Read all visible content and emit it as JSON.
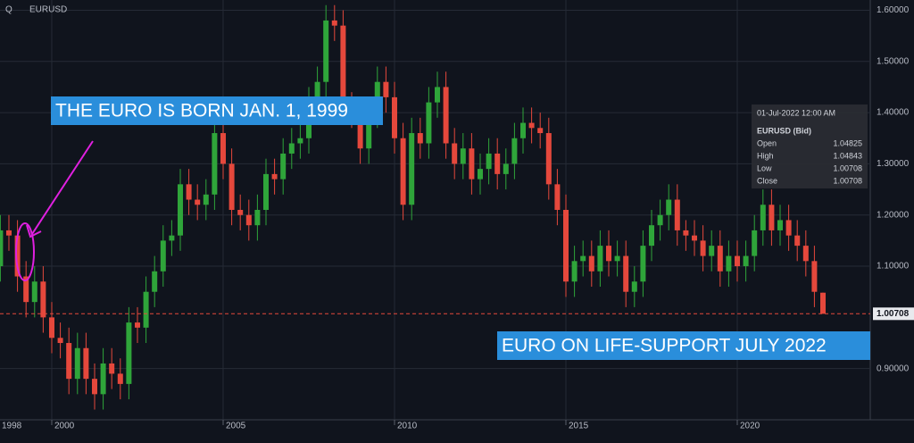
{
  "chart_data": {
    "type": "candlestick",
    "symbol": "EURUSD",
    "menu_label": "Q",
    "x_start_label": "1998",
    "up_color": "#2fa53a",
    "down_color": "#e5483c",
    "grid": true,
    "xlim": [
      1998.49,
      2023.88
    ],
    "ylim": [
      0.8,
      1.62
    ],
    "xticks": [
      2000,
      2005,
      2010,
      2015,
      2020
    ],
    "yticks": [
      {
        "value": 0.9,
        "label": "0.90000"
      },
      {
        "value": 1.1,
        "label": "1.10000"
      },
      {
        "value": 1.2,
        "label": "1.20000"
      },
      {
        "value": 1.3,
        "label": "1.30000"
      },
      {
        "value": 1.4,
        "label": "1.40000"
      },
      {
        "value": 1.5,
        "label": "1.50000"
      },
      {
        "value": 1.6,
        "label": "1.60000"
      }
    ],
    "x": [
      1998.5,
      1998.75,
      1999,
      1999.25,
      1999.5,
      1999.75,
      2000,
      2000.25,
      2000.5,
      2000.75,
      2001,
      2001.25,
      2001.5,
      2001.75,
      2002,
      2002.25,
      2002.5,
      2002.75,
      2003,
      2003.25,
      2003.5,
      2003.75,
      2004,
      2004.25,
      2004.5,
      2004.75,
      2005,
      2005.25,
      2005.5,
      2005.75,
      2006,
      2006.25,
      2006.5,
      2006.75,
      2007,
      2007.25,
      2007.5,
      2007.75,
      2008,
      2008.25,
      2008.5,
      2008.75,
      2009,
      2009.25,
      2009.5,
      2009.75,
      2010,
      2010.25,
      2010.5,
      2010.75,
      2011,
      2011.25,
      2011.5,
      2011.75,
      2012,
      2012.25,
      2012.5,
      2012.75,
      2013,
      2013.25,
      2013.5,
      2013.75,
      2014,
      2014.25,
      2014.5,
      2014.75,
      2015,
      2015.25,
      2015.5,
      2015.75,
      2016,
      2016.25,
      2016.5,
      2016.75,
      2017,
      2017.25,
      2017.5,
      2017.75,
      2018,
      2018.25,
      2018.5,
      2018.75,
      2019,
      2019.25,
      2019.5,
      2019.75,
      2020,
      2020.25,
      2020.5,
      2020.75,
      2021,
      2021.25,
      2021.5,
      2021.75,
      2022,
      2022.25,
      2022.5
    ],
    "open": [
      1.1,
      1.17,
      1.16,
      1.08,
      1.03,
      1.07,
      1.0,
      0.96,
      0.95,
      0.88,
      0.94,
      0.88,
      0.85,
      0.91,
      0.89,
      0.87,
      0.99,
      0.98,
      1.05,
      1.09,
      1.15,
      1.16,
      1.26,
      1.23,
      1.22,
      1.24,
      1.36,
      1.3,
      1.21,
      1.2,
      1.18,
      1.21,
      1.28,
      1.27,
      1.32,
      1.34,
      1.35,
      1.42,
      1.46,
      1.58,
      1.57,
      1.41,
      1.4,
      1.33,
      1.4,
      1.46,
      1.43,
      1.35,
      1.22,
      1.36,
      1.34,
      1.42,
      1.45,
      1.34,
      1.3,
      1.33,
      1.27,
      1.29,
      1.32,
      1.28,
      1.3,
      1.35,
      1.38,
      1.37,
      1.36,
      1.26,
      1.21,
      1.07,
      1.11,
      1.12,
      1.09,
      1.14,
      1.11,
      1.12,
      1.05,
      1.07,
      1.14,
      1.18,
      1.2,
      1.23,
      1.17,
      1.16,
      1.15,
      1.12,
      1.14,
      1.09,
      1.12,
      1.1,
      1.12,
      1.17,
      1.22,
      1.17,
      1.19,
      1.16,
      1.14,
      1.11,
      1.04825
    ],
    "high": [
      1.2,
      1.2,
      1.19,
      1.11,
      1.1,
      1.1,
      1.03,
      0.99,
      0.98,
      0.97,
      0.97,
      0.91,
      0.94,
      0.94,
      0.92,
      1.02,
      1.02,
      1.08,
      1.12,
      1.18,
      1.19,
      1.29,
      1.29,
      1.26,
      1.27,
      1.39,
      1.39,
      1.33,
      1.24,
      1.23,
      1.24,
      1.31,
      1.31,
      1.35,
      1.37,
      1.38,
      1.45,
      1.49,
      1.61,
      1.61,
      1.6,
      1.44,
      1.43,
      1.43,
      1.49,
      1.49,
      1.46,
      1.38,
      1.39,
      1.39,
      1.45,
      1.48,
      1.48,
      1.37,
      1.36,
      1.36,
      1.32,
      1.35,
      1.35,
      1.33,
      1.38,
      1.41,
      1.41,
      1.4,
      1.39,
      1.29,
      1.24,
      1.14,
      1.15,
      1.15,
      1.17,
      1.17,
      1.15,
      1.15,
      1.1,
      1.17,
      1.21,
      1.23,
      1.26,
      1.26,
      1.19,
      1.19,
      1.18,
      1.17,
      1.17,
      1.15,
      1.15,
      1.15,
      1.2,
      1.25,
      1.25,
      1.22,
      1.22,
      1.19,
      1.17,
      1.14,
      1.04843
    ],
    "low": [
      1.07,
      1.13,
      1.05,
      1.0,
      1.0,
      0.97,
      0.93,
      0.92,
      0.85,
      0.85,
      0.85,
      0.82,
      0.82,
      0.86,
      0.84,
      0.84,
      0.95,
      0.95,
      1.02,
      1.06,
      1.12,
      1.13,
      1.2,
      1.19,
      1.19,
      1.21,
      1.27,
      1.18,
      1.17,
      1.15,
      1.15,
      1.18,
      1.24,
      1.24,
      1.29,
      1.31,
      1.32,
      1.39,
      1.43,
      1.54,
      1.38,
      1.37,
      1.3,
      1.3,
      1.37,
      1.4,
      1.32,
      1.19,
      1.19,
      1.31,
      1.31,
      1.39,
      1.31,
      1.27,
      1.27,
      1.24,
      1.24,
      1.26,
      1.25,
      1.25,
      1.27,
      1.32,
      1.34,
      1.33,
      1.23,
      1.18,
      1.04,
      1.04,
      1.08,
      1.06,
      1.06,
      1.08,
      1.08,
      1.02,
      1.02,
      1.04,
      1.11,
      1.15,
      1.17,
      1.14,
      1.13,
      1.12,
      1.09,
      1.09,
      1.06,
      1.06,
      1.07,
      1.07,
      1.09,
      1.14,
      1.14,
      1.14,
      1.13,
      1.11,
      1.08,
      1.02,
      1.00708
    ],
    "close": [
      1.17,
      1.16,
      1.08,
      1.03,
      1.07,
      1.0,
      0.96,
      0.95,
      0.88,
      0.94,
      0.88,
      0.85,
      0.91,
      0.89,
      0.87,
      0.99,
      0.98,
      1.05,
      1.09,
      1.15,
      1.16,
      1.26,
      1.23,
      1.22,
      1.24,
      1.36,
      1.3,
      1.21,
      1.2,
      1.18,
      1.21,
      1.28,
      1.27,
      1.32,
      1.34,
      1.35,
      1.42,
      1.46,
      1.58,
      1.57,
      1.41,
      1.4,
      1.33,
      1.4,
      1.46,
      1.43,
      1.35,
      1.22,
      1.36,
      1.34,
      1.42,
      1.45,
      1.34,
      1.3,
      1.33,
      1.27,
      1.29,
      1.32,
      1.28,
      1.3,
      1.35,
      1.38,
      1.37,
      1.36,
      1.26,
      1.21,
      1.07,
      1.11,
      1.12,
      1.09,
      1.14,
      1.11,
      1.12,
      1.05,
      1.07,
      1.14,
      1.18,
      1.2,
      1.23,
      1.17,
      1.16,
      1.15,
      1.12,
      1.14,
      1.09,
      1.12,
      1.1,
      1.12,
      1.17,
      1.22,
      1.17,
      1.19,
      1.16,
      1.14,
      1.11,
      1.05,
      1.00708
    ],
    "info_box": {
      "date": "01-Jul-2022 12:00 AM",
      "title": "EURUSD (Bid)",
      "open_label": "Open",
      "high_label": "High",
      "low_label": "Low",
      "close_label": "Close"
    },
    "annotations": [
      "THE EURO IS BORN JAN. 1, 1999",
      "EURO ON LIFE-SUPPORT JULY 2022"
    ]
  }
}
